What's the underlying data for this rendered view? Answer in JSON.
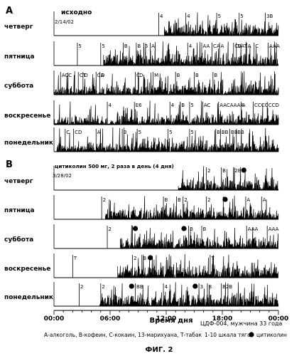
{
  "chart_data": {
    "type": "area",
    "x_axis": {
      "label": "Время дня",
      "ticks": [
        "00:00",
        "06:00",
        "12:00",
        "18:00",
        "00:00"
      ],
      "range_hours": [
        0,
        24
      ]
    },
    "panels": [
      {
        "letter": "A",
        "header": "исходно",
        "date": "2/14/02",
        "days": [
          {
            "day": "четверг",
            "activity_start_h": 11.8,
            "markers": [
              {
                "t": 11.2,
                "label": "4"
              },
              {
                "t": 14.1,
                "label": "4"
              },
              {
                "t": 17.4,
                "label": "5"
              },
              {
                "t": 19.8,
                "label": "5"
              },
              {
                "t": 22.6,
                "label": "3B"
              }
            ]
          },
          {
            "day": "пятница",
            "activity_start_h": 5.3,
            "markers": [
              {
                "t": 2.5,
                "label": "5"
              },
              {
                "t": 5.0,
                "label": "5"
              },
              {
                "t": 7.4,
                "label": "B"
              },
              {
                "t": 8.8,
                "label": "B"
              },
              {
                "t": 9.6,
                "label": "5"
              },
              {
                "t": 10.3,
                "label": "A"
              },
              {
                "t": 14.3,
                "label": "4"
              },
              {
                "t": 15.8,
                "label": "AA"
              },
              {
                "t": 16.9,
                "label": "CA"
              },
              {
                "t": 17.7,
                "label": "A"
              },
              {
                "t": 19.2,
                "label": "CVAT"
              },
              {
                "t": 20.6,
                "label": "A"
              },
              {
                "t": 21.4,
                "label": "C"
              },
              {
                "t": 22.9,
                "label": "AAA"
              },
              {
                "t": 19.5,
                "label": "D"
              }
            ]
          },
          {
            "day": "суббота",
            "activity_start_h": 0.0,
            "markers": [
              {
                "t": 0.7,
                "label": "ACC"
              },
              {
                "t": 2.6,
                "label": "CT"
              },
              {
                "t": 3.1,
                "label": "D"
              },
              {
                "t": 4.5,
                "label": "CA"
              },
              {
                "t": 4.9,
                "label": "D"
              },
              {
                "t": 8.7,
                "label": "C"
              },
              {
                "t": 9.0,
                "label": "D"
              },
              {
                "t": 10.6,
                "label": "M"
              },
              {
                "t": 13.0,
                "label": "B"
              },
              {
                "t": 15.0,
                "label": "B"
              },
              {
                "t": 17.0,
                "label": "B"
              }
            ]
          },
          {
            "day": "воскресенье",
            "activity_start_h": 0.0,
            "markers": [
              {
                "t": 8.6,
                "label": "E6"
              },
              {
                "t": 5.7,
                "label": "4"
              },
              {
                "t": 12.4,
                "label": "4"
              },
              {
                "t": 13.5,
                "label": "B"
              },
              {
                "t": 14.5,
                "label": "5"
              },
              {
                "t": 15.9,
                "label": "AC"
              },
              {
                "t": 17.6,
                "label": "AACAAAA"
              },
              {
                "t": 20.0,
                "label": "A"
              },
              {
                "t": 21.3,
                "label": "CCCC"
              },
              {
                "t": 22.8,
                "label": "CCD"
              }
            ]
          },
          {
            "day": "понедельник",
            "activity_start_h": 0.3,
            "markers": [
              {
                "t": 1.2,
                "label": "C"
              },
              {
                "t": 2.1,
                "label": "CD"
              },
              {
                "t": 4.5,
                "label": "A"
              },
              {
                "t": 7.3,
                "label": "B"
              },
              {
                "t": 8.9,
                "label": "5"
              },
              {
                "t": 12.2,
                "label": "5"
              },
              {
                "t": 14.5,
                "label": "5"
              },
              {
                "t": 17.3,
                "label": "B"
              },
              {
                "t": 17.8,
                "label": "BB"
              },
              {
                "t": 18.8,
                "label": "BB"
              },
              {
                "t": 19.5,
                "label": "BB"
              }
            ]
          }
        ]
      },
      {
        "letter": "B",
        "header": "цитиколин 500 мг, 2 раза в день (4 дня)",
        "date": "3/28/02",
        "days": [
          {
            "day": "четверг",
            "activity_start_h": 13.3,
            "markers": [
              {
                "t": 16.3,
                "label": "2"
              },
              {
                "t": 17.9,
                "label": "B"
              },
              {
                "t": 19.2,
                "label": "2B"
              }
            ]
          },
          {
            "day": "пятница",
            "activity_start_h": 5.5,
            "markers": [
              {
                "t": 5.1,
                "label": "2"
              },
              {
                "t": 11.7,
                "label": "B"
              },
              {
                "t": 13.1,
                "label": "B"
              },
              {
                "t": 13.8,
                "label": "2"
              },
              {
                "t": 16.3,
                "label": "2"
              },
              {
                "t": 18.1,
                "label": "B"
              },
              {
                "t": 20.5,
                "label": "A"
              },
              {
                "t": 22.2,
                "label": "A"
              }
            ]
          },
          {
            "day": "суббота",
            "activity_start_h": 7.1,
            "markers": [
              {
                "t": 5.7,
                "label": "2"
              },
              {
                "t": 8.4,
                "label": "B"
              },
              {
                "t": 14.4,
                "label": "B"
              },
              {
                "t": 15.8,
                "label": "B"
              },
              {
                "t": 20.6,
                "label": "AAA"
              },
              {
                "t": 22.8,
                "label": "AAA"
              }
            ]
          },
          {
            "day": "воскресенье",
            "activity_start_h": 6.8,
            "markers": [
              {
                "t": 2.0,
                "label": "T"
              },
              {
                "t": 8.4,
                "label": "2"
              },
              {
                "t": 9.4,
                "label": "B"
              },
              {
                "t": 16.7,
                "label": "T"
              }
            ]
          },
          {
            "day": "понедельник",
            "activity_start_h": 4.9,
            "markers": [
              {
                "t": 2.7,
                "label": "2"
              },
              {
                "t": 5.0,
                "label": "2"
              },
              {
                "t": 8.7,
                "label": "BB"
              },
              {
                "t": 11.7,
                "label": "4"
              },
              {
                "t": 15.5,
                "label": "3"
              },
              {
                "t": 16.4,
                "label": "B"
              },
              {
                "t": 17.9,
                "label": "B2"
              },
              {
                "t": 18.6,
                "label": "B"
              }
            ]
          }
        ],
        "citicoline_doses": [
          {
            "day": "четверг",
            "t": 20.3
          },
          {
            "day": "пятница",
            "t": 18.3
          },
          {
            "day": "суббота",
            "t": 8.7
          },
          {
            "day": "суббота",
            "t": 13.9
          },
          {
            "day": "воскресенье",
            "t": 10.3
          },
          {
            "day": "понедельник",
            "t": 8.3
          },
          {
            "day": "понедельник",
            "t": 15.1
          }
        ]
      }
    ],
    "subject": "ЦДФ-004, мужчина 33 года",
    "legend": "А-алкоголь, В-кофеин, С-кокаин, 13-марихуана, Т-табак",
    "scale_note": "1-10 шкала тяга",
    "dose_legend": "цитиколин",
    "figure_caption": "ФИГ. 2"
  }
}
